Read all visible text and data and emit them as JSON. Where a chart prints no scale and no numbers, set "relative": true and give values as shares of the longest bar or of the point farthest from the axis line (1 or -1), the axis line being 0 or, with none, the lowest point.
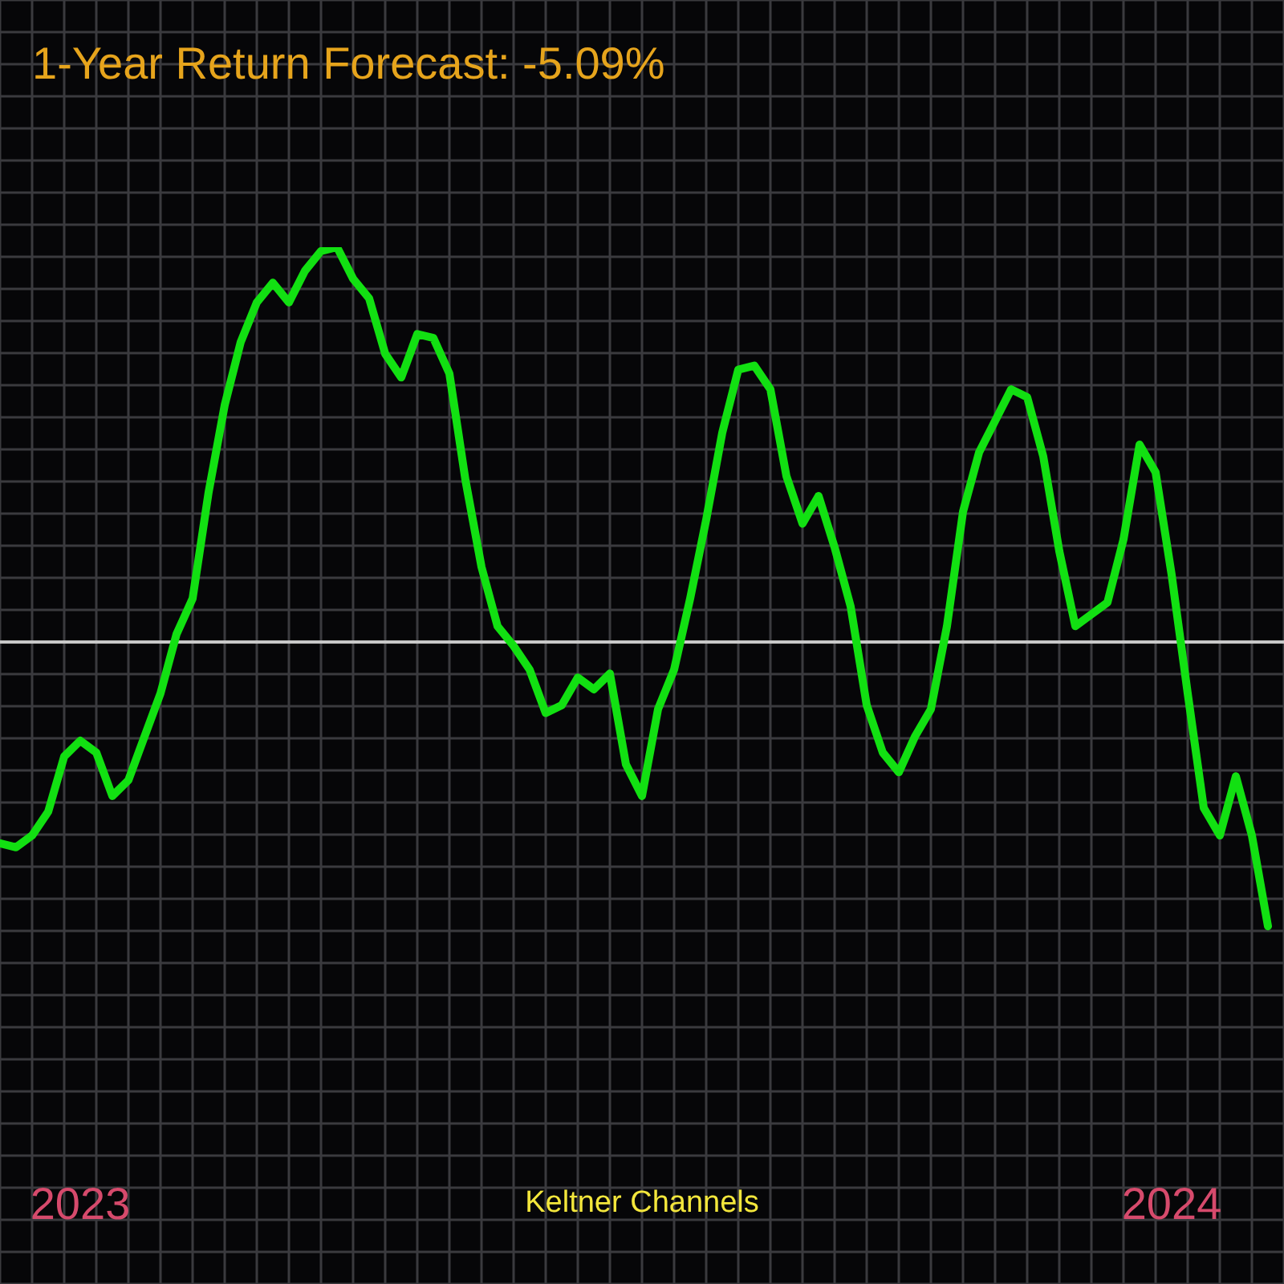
{
  "chart_data": {
    "type": "line",
    "title": "1-Year Return Forecast: -5.09%",
    "annotations": [
      "Keltner Channels"
    ],
    "categories": [
      null,
      null,
      null,
      null,
      null,
      "2023",
      null,
      null,
      null,
      null,
      null,
      null,
      null,
      null,
      null,
      null,
      null,
      null,
      null,
      null,
      null,
      null,
      null,
      null,
      null,
      null,
      null,
      null,
      null,
      null,
      null,
      null,
      null,
      null,
      null,
      null,
      null,
      null,
      null,
      null,
      null,
      null,
      null,
      null,
      null,
      null,
      null,
      null,
      null,
      null,
      null,
      null,
      null,
      null,
      null,
      null,
      null,
      null,
      null,
      null,
      null,
      null,
      null,
      null,
      null,
      null,
      null,
      null,
      null,
      null,
      null,
      null,
      null,
      "2024",
      null,
      null,
      null,
      null,
      null,
      null
    ],
    "values": [
      -0.51,
      -0.52,
      -0.49,
      -0.43,
      -0.29,
      -0.25,
      -0.28,
      -0.39,
      -0.35,
      -0.24,
      -0.13,
      0.02,
      0.11,
      0.38,
      0.6,
      0.76,
      0.86,
      0.91,
      0.86,
      0.94,
      0.99,
      1.0,
      0.92,
      0.87,
      0.73,
      0.67,
      0.78,
      0.77,
      0.68,
      0.41,
      0.19,
      0.04,
      -0.01,
      -0.07,
      -0.18,
      -0.16,
      -0.09,
      -0.12,
      -0.08,
      -0.31,
      -0.39,
      -0.17,
      -0.07,
      0.11,
      0.31,
      0.53,
      0.69,
      0.7,
      0.64,
      0.42,
      0.3,
      0.37,
      0.24,
      0.09,
      -0.16,
      -0.28,
      -0.33,
      -0.24,
      -0.17,
      0.04,
      0.33,
      0.48,
      0.56,
      0.64,
      0.62,
      0.47,
      0.23,
      0.04,
      0.07,
      0.1,
      0.26,
      0.5,
      0.43,
      0.17,
      -0.13,
      -0.42,
      -0.49,
      -0.34,
      -0.49,
      -0.72
    ],
    "color": "#12e012",
    "relative": true,
    "ref_lines": [
      {
        "axis": "y",
        "value": 0,
        "color": "#c8c8c8"
      }
    ],
    "grid": true,
    "legend": false,
    "marker": "none",
    "line_style": "solid",
    "tick_labels": "x"
  }
}
